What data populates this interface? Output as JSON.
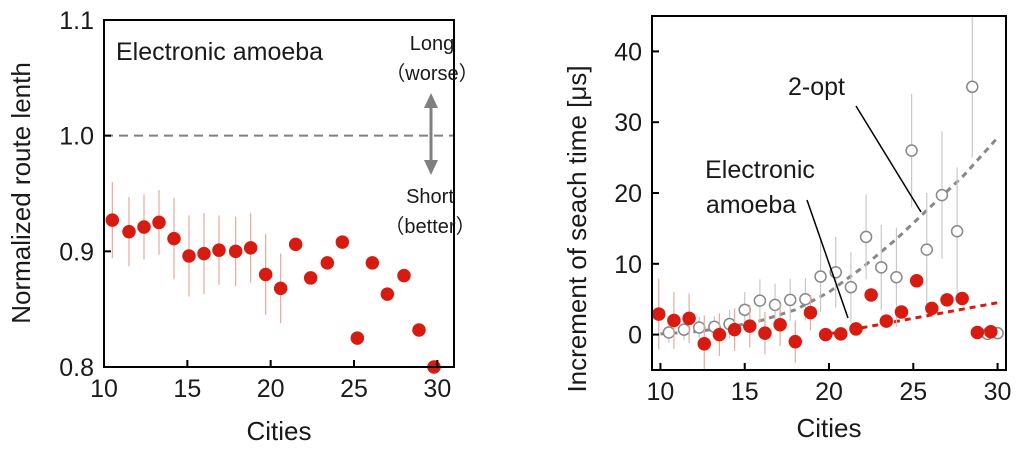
{
  "colors": {
    "amoeba": "#d81b10",
    "two_opt": "#888888",
    "reference": "#808080",
    "axis": "#000000",
    "errorbar": "#e8a89a",
    "errorbar_2opt": "#c8c8c8"
  },
  "chart_data": [
    {
      "type": "scatter",
      "title": "",
      "xlabel": "Cities",
      "ylabel": "Normalized route lenth",
      "xlim": [
        10,
        31
      ],
      "ylim": [
        0.8,
        1.1
      ],
      "x_ticks": [
        "10",
        "15",
        "20",
        "25",
        "30"
      ],
      "x_tick_values": [
        10,
        15,
        20,
        25,
        30
      ],
      "y_ticks": [
        "0.8",
        "0.9",
        "1.0",
        "1.1"
      ],
      "y_tick_values": [
        0.8,
        0.9,
        1.0,
        1.1
      ],
      "grid": false,
      "reference_line": {
        "y": 1.0,
        "style": "dashed"
      },
      "annotations": {
        "series_label": "Electronic amoeba",
        "long_line1": "Long",
        "long_line2": "（worse）",
        "short_line1": "Short",
        "short_line2": "（better）"
      },
      "series": [
        {
          "marker": "filled-circle",
          "x": [
            10.5,
            11.5,
            12.4,
            13.3,
            14.2,
            15.1,
            16.0,
            16.9,
            17.9,
            18.8,
            19.7,
            20.6,
            21.5,
            22.4,
            23.4,
            24.3,
            25.2,
            26.1,
            27.0,
            28.0,
            28.9,
            29.8
          ],
          "y": [
            0.927,
            0.917,
            0.921,
            0.925,
            0.911,
            0.896,
            0.898,
            0.901,
            0.9,
            0.903,
            0.88,
            0.868,
            0.906,
            0.877,
            0.89,
            0.908,
            0.825,
            0.89,
            0.863,
            0.879,
            0.832,
            0.8
          ],
          "err": [
            0.033,
            0.03,
            0.028,
            0.028,
            0.035,
            0.035,
            0.035,
            0.03,
            0.03,
            0.03,
            0.035,
            0.03,
            0,
            0,
            0,
            0,
            0,
            0,
            0,
            0,
            0,
            0
          ]
        }
      ]
    },
    {
      "type": "scatter",
      "title": "",
      "xlabel": "Cities",
      "ylabel": "Increment of seach time [μs]",
      "xlim": [
        9.5,
        30.5
      ],
      "ylim": [
        -5,
        45
      ],
      "x_ticks": [
        "10",
        "15",
        "20",
        "25",
        "30"
      ],
      "x_tick_values": [
        10,
        15,
        20,
        25,
        30
      ],
      "y_ticks": [
        "0",
        "10",
        "20",
        "30",
        "40"
      ],
      "y_tick_values": [
        0,
        10,
        20,
        30,
        40
      ],
      "grid": false,
      "annotations": {
        "two_opt_label": "2-opt",
        "amoeba_label_line1": "Electronic",
        "amoeba_label_line2": "amoeba"
      },
      "series": [
        {
          "name": "2-opt",
          "marker": "open-circle",
          "x": [
            10.5,
            11.4,
            12.3,
            13.2,
            14.1,
            15.0,
            15.9,
            16.8,
            17.7,
            18.6,
            19.5,
            20.4,
            21.3,
            22.2,
            23.1,
            24.0,
            24.9,
            25.8,
            26.7,
            27.6,
            28.5,
            29.4,
            30.0
          ],
          "y": [
            0.3,
            0.7,
            1.0,
            1.1,
            1.5,
            3.5,
            4.8,
            4.2,
            4.9,
            5.0,
            8.2,
            8.8,
            6.7,
            13.8,
            9.5,
            8.1,
            26.0,
            12.0,
            19.7,
            14.6,
            35.0,
            0.1,
            0.2
          ],
          "err": [
            1.5,
            1.5,
            1.5,
            1.5,
            2.0,
            2.5,
            3.0,
            3.0,
            3.0,
            3.0,
            5.0,
            5.0,
            5.0,
            6.0,
            6.0,
            7.0,
            8.0,
            8.0,
            9.0,
            9.0,
            10.0,
            0,
            0
          ],
          "fit": {
            "form": "exponential",
            "x": [
              10,
              12,
              14,
              16,
              18,
              20,
              22,
              24,
              26,
              28,
              30
            ],
            "y": [
              0.1,
              0.4,
              1.0,
              2.0,
              3.5,
              6.0,
              9.5,
              13.5,
              18.0,
              22.5,
              27.8
            ]
          }
        },
        {
          "name": "Electronic amoeba",
          "marker": "filled-circle",
          "x": [
            9.9,
            10.8,
            11.7,
            12.6,
            13.5,
            14.4,
            15.3,
            16.2,
            17.1,
            18.0,
            18.9,
            19.8,
            20.7,
            21.6,
            22.5,
            23.4,
            24.3,
            25.2,
            26.1,
            27.0,
            27.9,
            28.8,
            29.6
          ],
          "y": [
            2.9,
            2.0,
            2.3,
            -1.3,
            0.0,
            0.7,
            1.2,
            0.2,
            1.4,
            -1.0,
            3.1,
            0.0,
            0.1,
            0.8,
            5.6,
            1.9,
            3.2,
            7.6,
            3.7,
            4.9,
            5.1,
            0.3,
            0.4
          ],
          "err": [
            5.0,
            4.0,
            3.5,
            4.0,
            3.0,
            3.0,
            3.0,
            3.0,
            3.0,
            3.0,
            2.5,
            0,
            0,
            0,
            0,
            0,
            0,
            0,
            0,
            0,
            0,
            0,
            0
          ],
          "fit": {
            "form": "linear",
            "x": [
              20,
              30
            ],
            "y": [
              0.1,
              4.5
            ]
          }
        }
      ]
    }
  ]
}
